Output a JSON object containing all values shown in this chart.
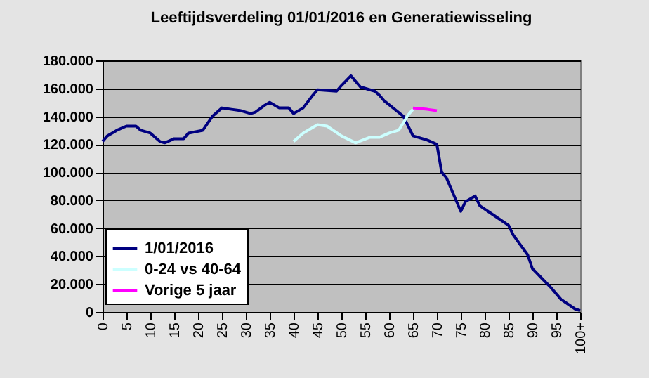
{
  "chart_data": {
    "type": "line",
    "title": "Leeftijdsverdeling 01/01/2016 en Generatiewisseling",
    "xlim": [
      0,
      100
    ],
    "xticks": [
      0,
      5,
      10,
      15,
      20,
      25,
      30,
      35,
      40,
      45,
      50,
      55,
      60,
      65,
      70,
      75,
      80,
      85,
      90,
      95,
      {
        "value": 100,
        "label": "100+"
      }
    ],
    "ylim": [
      0,
      180000
    ],
    "yticks": [
      0,
      {
        "value": 20000,
        "label": "20.000"
      },
      {
        "value": 40000,
        "label": "40.000"
      },
      {
        "value": 60000,
        "label": "60.000"
      },
      {
        "value": 80000,
        "label": "80.000"
      },
      {
        "value": 100000,
        "label": "100.000"
      },
      {
        "value": 120000,
        "label": "120.000"
      },
      {
        "value": 140000,
        "label": "140.000"
      },
      {
        "value": 160000,
        "label": "160.000"
      },
      {
        "value": 180000,
        "label": "180.000"
      }
    ],
    "grid": "y",
    "legend": "bottom left",
    "series": [
      {
        "name": "1/01/2016",
        "color": "#000080",
        "x": [
          0,
          1,
          3,
          5,
          7,
          8,
          10,
          12,
          13,
          15,
          17,
          18,
          21,
          23,
          25,
          27,
          29,
          31,
          32,
          34,
          35,
          37,
          39,
          40,
          42,
          44,
          45,
          49,
          50,
          52,
          54,
          57,
          58,
          59,
          63,
          65,
          67,
          68,
          70,
          71,
          72,
          75,
          76,
          78,
          79,
          82,
          85,
          86,
          89,
          90,
          92,
          94,
          96,
          99,
          100
        ],
        "values": [
          122000,
          126000,
          130000,
          133000,
          133000,
          130000,
          128000,
          122000,
          121000,
          124000,
          124000,
          128000,
          130000,
          140000,
          146000,
          145000,
          144000,
          142000,
          143000,
          148000,
          150000,
          146000,
          146000,
          142000,
          146000,
          155000,
          159000,
          158000,
          162000,
          169000,
          161000,
          158000,
          155000,
          151000,
          140000,
          126000,
          124000,
          123000,
          120000,
          100000,
          96000,
          72000,
          79000,
          83000,
          76000,
          69000,
          62000,
          55000,
          41000,
          31000,
          24000,
          17000,
          9000,
          2000,
          1000
        ]
      },
      {
        "name": "0-24 vs 40-64",
        "color": "#ccffff",
        "x": [
          40,
          42,
          45,
          47,
          50,
          53,
          56,
          58,
          60,
          62,
          64,
          65
        ],
        "values": [
          122000,
          128000,
          134000,
          133000,
          126000,
          121000,
          125000,
          125000,
          128000,
          130000,
          141000,
          145000
        ]
      },
      {
        "name": "Vorige 5 jaar",
        "color": "#ff00ff",
        "x": [
          65,
          68,
          70
        ],
        "values": [
          146000,
          145000,
          144000
        ]
      }
    ]
  }
}
